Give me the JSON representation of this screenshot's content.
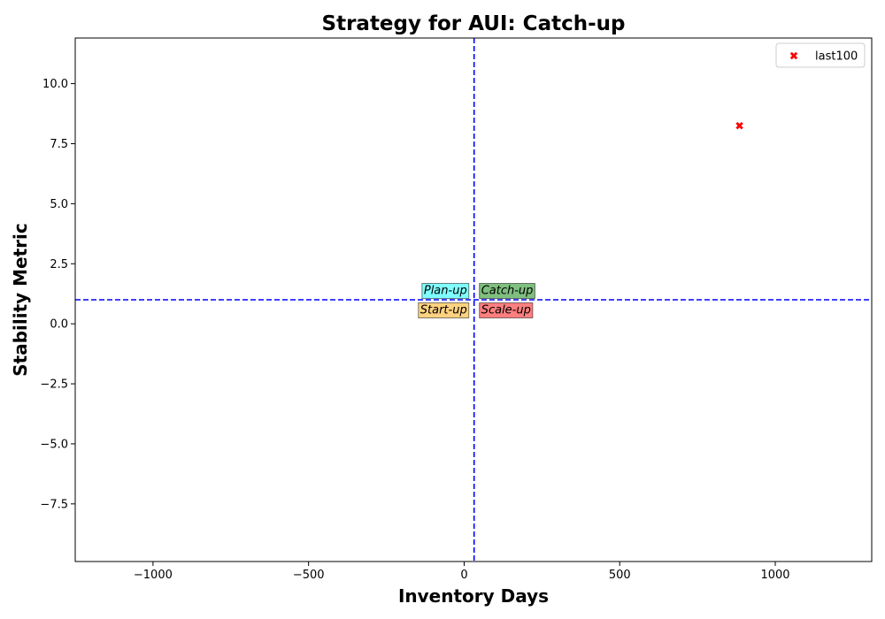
{
  "chart_data": {
    "type": "scatter",
    "title": "Strategy for AUI: Catch-up",
    "xlabel": "Inventory Days",
    "ylabel": "Stability Metric",
    "xlim": [
      -1250,
      1310
    ],
    "ylim": [
      -9.9,
      11.9
    ],
    "xticks": [
      -1000,
      -500,
      0,
      500,
      1000
    ],
    "xtick_labels": [
      "−1000",
      "−500",
      "0",
      "500",
      "1000"
    ],
    "yticks": [
      -7.5,
      -5.0,
      -2.5,
      0.0,
      2.5,
      5.0,
      7.5,
      10.0
    ],
    "ytick_labels": [
      "−7.5",
      "−5.0",
      "−2.5",
      "0.0",
      "2.5",
      "5.0",
      "7.5",
      "10.0"
    ],
    "grid": false,
    "legend_position": "top-right",
    "reference_lines": {
      "x": 32,
      "y": 1.0,
      "color": "#0000ff",
      "style": "dashed"
    },
    "quadrant_labels": [
      {
        "text": "Plan-up",
        "color": "#00ffff",
        "position": "upper-left"
      },
      {
        "text": "Catch-up",
        "color": "#008000",
        "position": "upper-right"
      },
      {
        "text": "Start-up",
        "color": "#ffa500",
        "position": "lower-left"
      },
      {
        "text": "Scale-up",
        "color": "#ff0000",
        "position": "lower-right"
      }
    ],
    "series": [
      {
        "name": "last100",
        "marker": "X",
        "color": "#ff0000",
        "x": [
          885
        ],
        "y": [
          8.25
        ]
      }
    ]
  }
}
